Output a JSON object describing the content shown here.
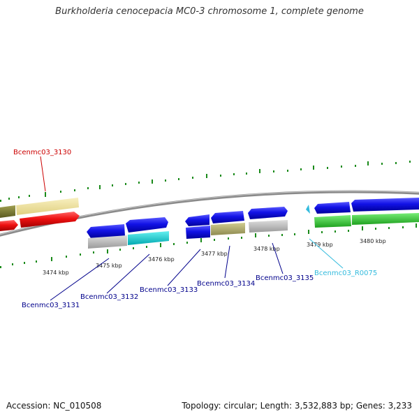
{
  "title": "Burkholderia cenocepacia MC0-3 chromosome 1, complete genome",
  "footer": {
    "accession": "Accession: NC_010508",
    "summary": "Topology: circular; Length: 3,532,883 bp; Genes: 3,233"
  },
  "scale": {
    "ticks": [
      "3474 kbp",
      "3475 kbp",
      "3476 kbp",
      "3477 kbp",
      "3478 kbp",
      "3479 kbp",
      "3480 kbp"
    ]
  },
  "genes": [
    {
      "name": "Bcenmc03_3130",
      "color": "#cc0000"
    },
    {
      "name": "Bcenmc03_3131",
      "color": "#00008b"
    },
    {
      "name": "Bcenmc03_3132",
      "color": "#00008b"
    },
    {
      "name": "Bcenmc03_3133",
      "color": "#00008b"
    },
    {
      "name": "Bcenmc03_3134",
      "color": "#00008b"
    },
    {
      "name": "Bcenmc03_3135",
      "color": "#00008b"
    },
    {
      "name": "Bcenmc03_R0075",
      "color": "#33bbdd"
    }
  ],
  "colors": {
    "cds": "#1010e0",
    "trna": "#00cccc",
    "red": "#ee1111",
    "olive": "#808033",
    "khaki": "#eee099",
    "tan": "#b5b06e",
    "grey": "#bbbbbb",
    "green": "#33cc33",
    "backbone": "#8a8a8a",
    "tick": "#1a8a1a"
  }
}
